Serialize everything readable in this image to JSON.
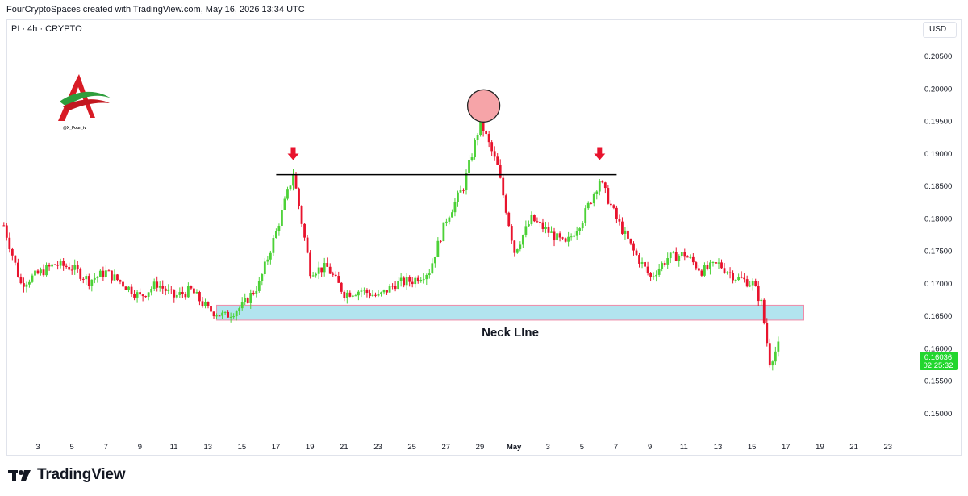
{
  "header": {
    "attribution": "FourCryptoSpaces created with TradingView.com, May 16, 2026 13:34 UTC",
    "symbol_line": "PI · 4h · CRYPTO",
    "currency": "USD"
  },
  "watermark": {
    "handle": "@X_Four_iv"
  },
  "footer": {
    "brand": "TradingView"
  },
  "colors": {
    "up": "#4cd137",
    "down": "#e8132d",
    "zone": "#b2e4ef",
    "zone_border": "#f08aa8",
    "circle": "#f6a4a8",
    "arrow": "#e8132d",
    "price_tag": "#22d62e"
  },
  "chart_data": {
    "type": "candlestick",
    "ylim": [
      0.1465,
      0.2075
    ],
    "y_ticks": [
      "0.20500",
      "0.20000",
      "0.19500",
      "0.19000",
      "0.18500",
      "0.18000",
      "0.17500",
      "0.17000",
      "0.16500",
      "0.16000",
      "0.15500",
      "0.15000"
    ],
    "x_ticks": [
      "3",
      "5",
      "7",
      "9",
      "11",
      "13",
      "15",
      "17",
      "19",
      "21",
      "23",
      "25",
      "27",
      "29",
      "May",
      "3",
      "5",
      "7",
      "9",
      "11",
      "13",
      "15",
      "17",
      "19",
      "21",
      "23"
    ],
    "last_price": "0.16036",
    "countdown": "02:25:32",
    "neckline_zone": {
      "label": "Neck LIne",
      "y_low": 0.1644,
      "y_high": 0.1667
    },
    "resistance_level": 0.1868,
    "top_marker": {
      "x": "Apr 29",
      "y": 0.1974
    },
    "shoulder_markers": [
      {
        "x": "Apr 18",
        "y": 0.1893
      },
      {
        "x": "May 6",
        "y": 0.1893
      }
    ],
    "price_path": [
      {
        "x": "Apr 1",
        "y": 0.179
      },
      {
        "x": "Apr 2",
        "y": 0.17
      },
      {
        "x": "Apr 3",
        "y": 0.1715
      },
      {
        "x": "Apr 4",
        "y": 0.173
      },
      {
        "x": "Apr 5",
        "y": 0.1725
      },
      {
        "x": "Apr 6",
        "y": 0.1705
      },
      {
        "x": "Apr 7",
        "y": 0.1718
      },
      {
        "x": "Apr 8",
        "y": 0.17
      },
      {
        "x": "Apr 9",
        "y": 0.168
      },
      {
        "x": "Apr 10",
        "y": 0.17
      },
      {
        "x": "Apr 11",
        "y": 0.168
      },
      {
        "x": "Apr 12",
        "y": 0.169
      },
      {
        "x": "Apr 13",
        "y": 0.166
      },
      {
        "x": "Apr 14",
        "y": 0.165
      },
      {
        "x": "Apr 15",
        "y": 0.1665
      },
      {
        "x": "Apr 16",
        "y": 0.17
      },
      {
        "x": "Apr 17",
        "y": 0.178
      },
      {
        "x": "Apr 18",
        "y": 0.187
      },
      {
        "x": "Apr 19",
        "y": 0.172
      },
      {
        "x": "Apr 20",
        "y": 0.1725
      },
      {
        "x": "Apr 21",
        "y": 0.1685
      },
      {
        "x": "Apr 22",
        "y": 0.169
      },
      {
        "x": "Apr 23",
        "y": 0.168
      },
      {
        "x": "Apr 24",
        "y": 0.17
      },
      {
        "x": "Apr 25",
        "y": 0.1705
      },
      {
        "x": "Apr 26",
        "y": 0.172
      },
      {
        "x": "Apr 27",
        "y": 0.18
      },
      {
        "x": "Apr 28",
        "y": 0.185
      },
      {
        "x": "Apr 29",
        "y": 0.195
      },
      {
        "x": "Apr 30",
        "y": 0.188
      },
      {
        "x": "May 1",
        "y": 0.175
      },
      {
        "x": "May 2",
        "y": 0.18
      },
      {
        "x": "May 3",
        "y": 0.178
      },
      {
        "x": "May 4",
        "y": 0.176
      },
      {
        "x": "May 5",
        "y": 0.18
      },
      {
        "x": "May 6",
        "y": 0.186
      },
      {
        "x": "May 7",
        "y": 0.18
      },
      {
        "x": "May 8",
        "y": 0.175
      },
      {
        "x": "May 9",
        "y": 0.171
      },
      {
        "x": "May 10",
        "y": 0.174
      },
      {
        "x": "May 11",
        "y": 0.1745
      },
      {
        "x": "May 12",
        "y": 0.172
      },
      {
        "x": "May 13",
        "y": 0.173
      },
      {
        "x": "May 14",
        "y": 0.171
      },
      {
        "x": "May 15",
        "y": 0.17
      },
      {
        "x": "May 15.5",
        "y": 0.167
      },
      {
        "x": "May 16",
        "y": 0.158
      },
      {
        "x": "May 16.5",
        "y": 0.1604
      }
    ]
  }
}
